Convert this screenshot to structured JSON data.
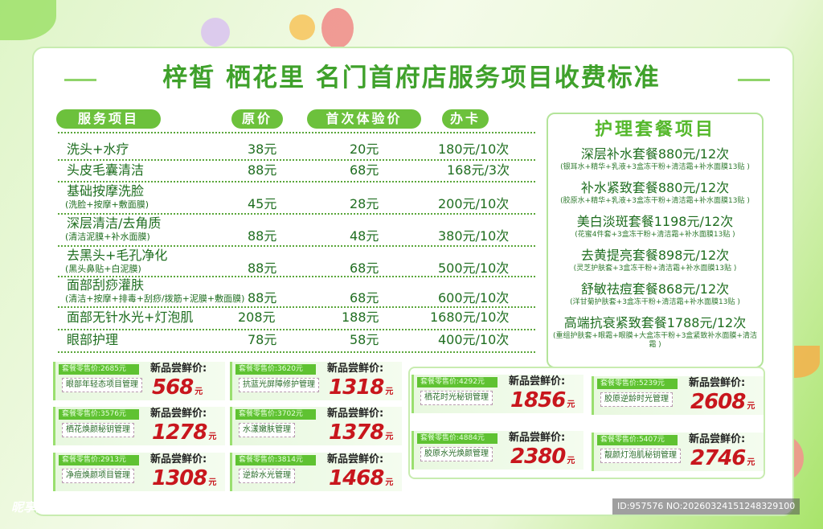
{
  "title": "梓皙  栖花里  名门首府店服务项目收费标准",
  "headers": {
    "service": "服务项目",
    "original": "原价",
    "first": "首次体验价",
    "card": "办卡"
  },
  "services": [
    {
      "name": "洗头+水疗",
      "detail": "",
      "original": "38元",
      "first": "20元",
      "card": "180元/10次"
    },
    {
      "name": "头皮毛囊清洁",
      "detail": "",
      "original": "88元",
      "first": "68元",
      "card": "168元/3次"
    },
    {
      "name": "基础按摩洗脸",
      "detail": "(洗脸+按摩+敷面膜)",
      "original": "45元",
      "first": "28元",
      "card": "200元/10次"
    },
    {
      "name": "深层清洁/去角质",
      "detail": "(清洁泥膜+补水面膜)",
      "original": "88元",
      "first": "48元",
      "card": "380元/10次"
    },
    {
      "name": "去黑头+毛孔净化",
      "detail": "(黑头鼻贴+白泥膜)",
      "original": "88元",
      "first": "68元",
      "card": "500元/10次"
    },
    {
      "name": "面部刮痧灌肤",
      "detail": "(清洁+按摩+排毒+刮痧/拨筋+泥膜+敷面膜)",
      "original": "88元",
      "first": "68元",
      "card": "600元/10次"
    },
    {
      "name": "面部无针水光+灯泡肌",
      "detail": "",
      "original": "208元",
      "first": "188元",
      "card": "1680元/10次"
    },
    {
      "name": "眼部护理",
      "detail": "",
      "original": "78元",
      "first": "58元",
      "card": "400元/10次"
    }
  ],
  "packages": {
    "title": "护理套餐项目",
    "items": [
      {
        "name": "深层补水套餐880元/12次",
        "detail": "(银耳水+精华+乳液+3盒冻干粉+清洁霜+补水面膜13贴 )"
      },
      {
        "name": "补水紧致套餐880元/12次",
        "detail": "(胶原水+精华+乳液+3盒冻干粉+清洁霜+补水面膜13贴 )"
      },
      {
        "name": "美白淡斑套餐1198元/12次",
        "detail": "(花蜜4件套+3盒冻干粉+清洁霜+补水面膜13贴 )"
      },
      {
        "name": "去黄提亮套餐898元/12次",
        "detail": "(灵芝护肤套+3盒冻干粉+清洁霜+补水面膜13贴 )"
      },
      {
        "name": "舒敏祛痘套餐868元/12次",
        "detail": "(洋甘菊护肤套+3盒冻干粉+清洁霜+补水面膜13贴 )"
      },
      {
        "name": "高端抗衰紧致套餐1788元/12次",
        "detail": "(重组护肤套+眼霜+眼膜+大盒冻干粉+3盒紧致补水面膜+清洁霜 )"
      }
    ]
  },
  "promo_label": "新品尝鲜价:",
  "promo_unit": "元",
  "promos": [
    {
      "retail": "套餐零售价:2685元",
      "name": "眼部年轻态项目管理",
      "price": "568"
    },
    {
      "retail": "套餐零售价:3576元",
      "name": "栖花焕颜秘钥管理",
      "price": "1278"
    },
    {
      "retail": "套餐零售价:2913元",
      "name": "净痘焕颜项目管理",
      "price": "1308"
    },
    {
      "retail": "套餐零售价:3620元",
      "name": "抗蓝光屏障修护管理",
      "price": "1318"
    },
    {
      "retail": "套餐零售价:3702元",
      "name": "水漾嫩肤管理",
      "price": "1378"
    },
    {
      "retail": "套餐零售价:3814元",
      "name": "逆龄水光管理",
      "price": "1468"
    },
    {
      "retail": "套餐零售价:4292元",
      "name": "栖花时光秘钥管理",
      "price": "1856"
    },
    {
      "retail": "套餐零售价:4884元",
      "name": "胶原水光焕颜管理",
      "price": "2380"
    },
    {
      "retail": "套餐零售价:5239元",
      "name": "胶原逆龄时光管理",
      "price": "2608"
    },
    {
      "retail": "套餐零售价:5407元",
      "name": "靓颜灯泡肌秘钥管理",
      "price": "2746"
    }
  ],
  "watermark": "昵享网 www.nipic.cn",
  "image_id": "ID:957576 NO:20260324151248329100"
}
